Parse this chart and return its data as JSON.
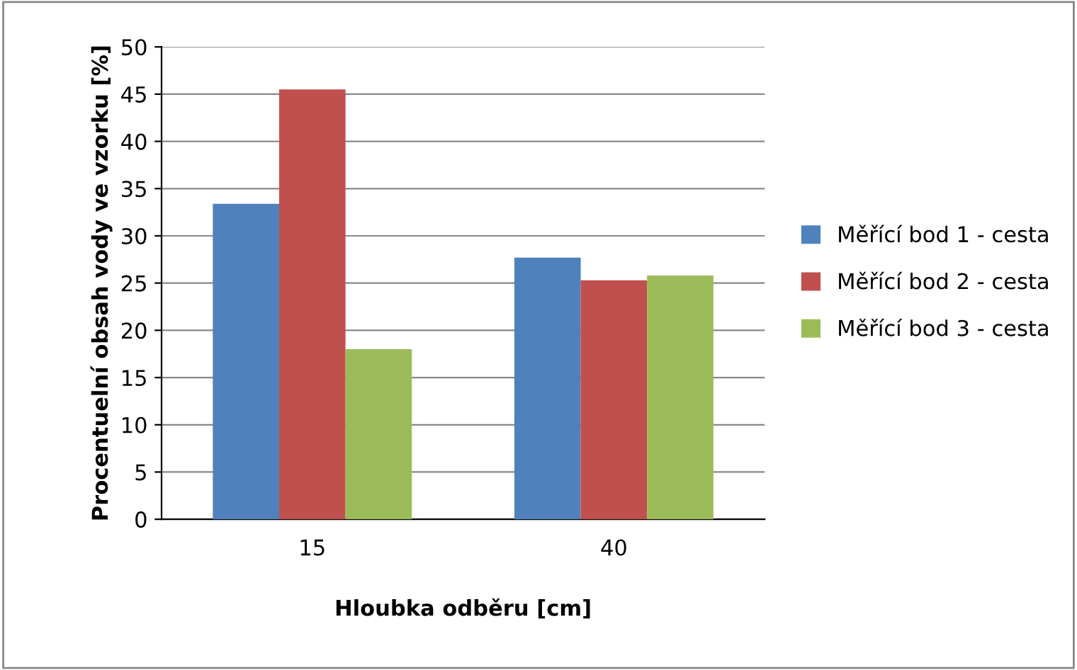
{
  "chart_data": {
    "type": "bar",
    "xlabel": "Hloubka odběru [cm]",
    "ylabel": "Procentuelní obsah vody ve vzorku [%]",
    "categories": [
      "15",
      "40"
    ],
    "series": [
      {
        "name": "Měřící bod 1 - cesta",
        "color": "#4f81bd",
        "values": [
          33.4,
          27.7
        ]
      },
      {
        "name": "Měřící bod 2 - cesta",
        "color": "#c0504d",
        "values": [
          45.5,
          25.3
        ]
      },
      {
        "name": "Měřící bod 3 - cesta",
        "color": "#9bbb59",
        "values": [
          18.0,
          25.8
        ]
      }
    ],
    "ylim": [
      0,
      50
    ],
    "yticks": [
      0,
      5,
      10,
      15,
      20,
      25,
      30,
      35,
      40,
      45,
      50
    ],
    "grid": "y",
    "legend": "right"
  }
}
